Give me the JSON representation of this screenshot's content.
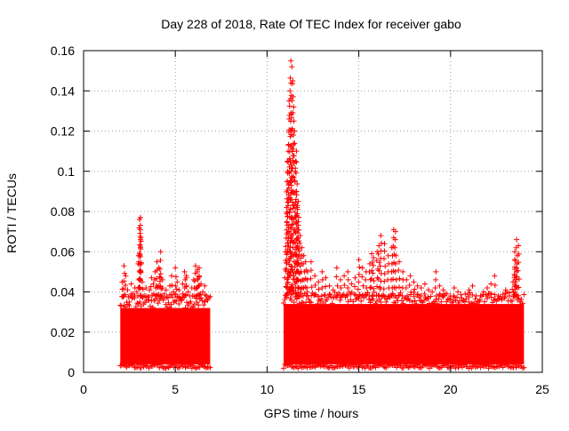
{
  "chart_data": {
    "type": "scatter",
    "title": "Day 228 of 2018, Rate Of TEC Index for receiver gabo",
    "xlabel": "GPS time / hours",
    "ylabel": "ROTI / TECUs",
    "xlim": [
      0,
      25
    ],
    "ylim": [
      0,
      0.16
    ],
    "xticks": [
      0,
      5,
      10,
      15,
      20,
      25
    ],
    "yticks": [
      0,
      0.02,
      0.04,
      0.06,
      0.08,
      0.1,
      0.12,
      0.14,
      0.16
    ],
    "xtick_labels": [
      "0",
      "5",
      "10",
      "15",
      "20",
      "25"
    ],
    "ytick_labels": [
      "0",
      "0.02",
      "0.04",
      "0.06",
      "0.08",
      "0.1",
      "0.12",
      "0.14",
      "0.16"
    ],
    "grid": true,
    "marker": "+",
    "color": "#ff0000",
    "dense_bands": [
      {
        "x_start": 2.0,
        "x_end": 6.9,
        "y_low": 0.004,
        "y_high": 0.032
      },
      {
        "x_start": 10.9,
        "x_end": 24.0,
        "y_low": 0.004,
        "y_high": 0.034
      }
    ],
    "series": [
      {
        "name": "ROTI",
        "x": [
          2.1,
          2.2,
          2.3,
          2.4,
          2.5,
          2.6,
          2.7,
          2.8,
          2.9,
          3.0,
          3.05,
          3.1,
          3.2,
          3.3,
          3.4,
          3.5,
          3.6,
          3.7,
          3.8,
          3.9,
          4.0,
          4.1,
          4.2,
          4.3,
          4.4,
          4.5,
          4.6,
          4.7,
          4.8,
          4.9,
          5.0,
          5.1,
          5.2,
          5.3,
          5.4,
          5.5,
          5.6,
          5.7,
          5.8,
          5.9,
          6.0,
          6.1,
          6.2,
          6.3,
          6.4,
          6.5,
          6.6,
          6.7,
          11.0,
          11.05,
          11.1,
          11.15,
          11.2,
          11.25,
          11.3,
          11.35,
          11.4,
          11.45,
          11.5,
          11.55,
          11.6,
          11.65,
          11.7,
          11.8,
          11.9,
          12.0,
          12.1,
          12.2,
          12.4,
          12.6,
          12.8,
          13.0,
          13.2,
          13.4,
          13.6,
          13.8,
          14.0,
          14.2,
          14.4,
          14.6,
          14.8,
          15.0,
          15.2,
          15.4,
          15.6,
          15.8,
          16.0,
          16.2,
          16.4,
          16.6,
          16.8,
          17.0,
          17.2,
          17.4,
          17.6,
          17.8,
          18.0,
          18.2,
          18.4,
          18.6,
          18.8,
          19.0,
          19.2,
          19.4,
          19.6,
          19.8,
          20.0,
          20.2,
          20.4,
          20.6,
          20.8,
          21.0,
          21.2,
          21.4,
          21.6,
          21.8,
          22.0,
          22.2,
          22.4,
          22.6,
          22.8,
          23.0,
          23.2,
          23.4,
          23.5,
          23.6,
          23.7,
          23.8,
          2.2,
          3.1,
          3.1,
          4.0,
          4.2,
          5.0,
          5.6,
          6.2,
          6.3,
          11.3,
          11.3,
          11.4,
          11.2,
          11.1,
          11.6,
          11.7,
          15.7,
          16.1,
          16.9,
          23.5,
          23.6,
          23.5
        ],
        "y": [
          0.045,
          0.038,
          0.048,
          0.041,
          0.035,
          0.044,
          0.039,
          0.042,
          0.04,
          0.058,
          0.076,
          0.071,
          0.045,
          0.038,
          0.042,
          0.036,
          0.041,
          0.047,
          0.044,
          0.05,
          0.043,
          0.052,
          0.06,
          0.046,
          0.039,
          0.041,
          0.037,
          0.043,
          0.048,
          0.04,
          0.039,
          0.045,
          0.041,
          0.036,
          0.044,
          0.05,
          0.047,
          0.04,
          0.038,
          0.042,
          0.046,
          0.053,
          0.051,
          0.048,
          0.044,
          0.04,
          0.043,
          0.038,
          0.06,
          0.079,
          0.095,
          0.11,
          0.126,
          0.14,
          0.155,
          0.152,
          0.145,
          0.132,
          0.12,
          0.105,
          0.09,
          0.083,
          0.075,
          0.068,
          0.062,
          0.058,
          0.055,
          0.05,
          0.055,
          0.048,
          0.045,
          0.05,
          0.047,
          0.043,
          0.041,
          0.052,
          0.046,
          0.048,
          0.05,
          0.044,
          0.047,
          0.056,
          0.052,
          0.05,
          0.054,
          0.057,
          0.06,
          0.068,
          0.064,
          0.058,
          0.062,
          0.07,
          0.055,
          0.05,
          0.046,
          0.048,
          0.045,
          0.043,
          0.042,
          0.044,
          0.041,
          0.04,
          0.05,
          0.043,
          0.041,
          0.039,
          0.038,
          0.042,
          0.04,
          0.037,
          0.039,
          0.041,
          0.043,
          0.038,
          0.036,
          0.04,
          0.042,
          0.044,
          0.048,
          0.038,
          0.036,
          0.041,
          0.038,
          0.045,
          0.06,
          0.066,
          0.063,
          0.035,
          0.053,
          0.077,
          0.066,
          0.055,
          0.049,
          0.052,
          0.048,
          0.05,
          0.052,
          0.144,
          0.1,
          0.12,
          0.135,
          0.105,
          0.11,
          0.085,
          0.059,
          0.063,
          0.071,
          0.056,
          0.052,
          0.048
        ]
      }
    ]
  }
}
